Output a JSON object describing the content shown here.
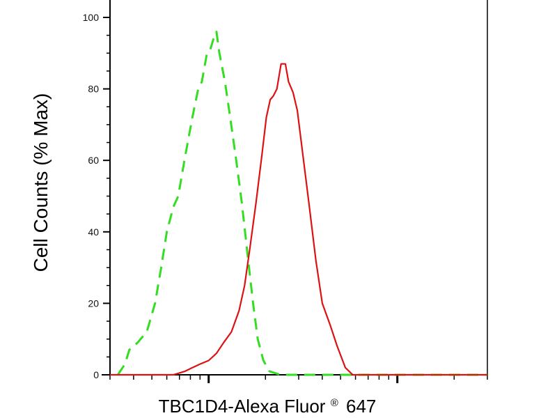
{
  "chart_data": {
    "type": "line",
    "xlabel": "TBC1D4-Alexa Fluor",
    "xlabel_mark": "®",
    "xlabel_suffix": "647",
    "ylabel": "Cell Counts (% Max)",
    "ylim": [
      0,
      100
    ],
    "yticks": [
      0,
      20,
      40,
      60,
      80,
      100
    ],
    "x_scale": "log",
    "xlim": [
      0.3,
      30
    ],
    "grid": false,
    "series": [
      {
        "style": "dashed",
        "color": "#33dd22",
        "points": [
          [
            0.33,
            0
          ],
          [
            0.36,
            3
          ],
          [
            0.38,
            7
          ],
          [
            0.42,
            9
          ],
          [
            0.47,
            12
          ],
          [
            0.52,
            20
          ],
          [
            0.56,
            30
          ],
          [
            0.6,
            40
          ],
          [
            0.65,
            47
          ],
          [
            0.69,
            50
          ],
          [
            0.75,
            61
          ],
          [
            0.82,
            72
          ],
          [
            0.88,
            80
          ],
          [
            0.92,
            82
          ],
          [
            0.98,
            90
          ],
          [
            1.02,
            91
          ],
          [
            1.06,
            94
          ],
          [
            1.1,
            96
          ],
          [
            1.14,
            90
          ],
          [
            1.22,
            82
          ],
          [
            1.3,
            72
          ],
          [
            1.4,
            60
          ],
          [
            1.5,
            48
          ],
          [
            1.62,
            32
          ],
          [
            1.72,
            20
          ],
          [
            1.82,
            10
          ],
          [
            1.95,
            4
          ],
          [
            2.1,
            1
          ],
          [
            2.4,
            0
          ],
          [
            5,
            0
          ],
          [
            10,
            0
          ],
          [
            30,
            0
          ]
        ]
      },
      {
        "style": "solid",
        "color": "#dd1111",
        "points": [
          [
            0.3,
            0
          ],
          [
            0.35,
            0
          ],
          [
            0.4,
            0
          ],
          [
            0.5,
            0
          ],
          [
            0.65,
            0
          ],
          [
            0.75,
            1
          ],
          [
            0.82,
            2
          ],
          [
            0.9,
            3
          ],
          [
            1.0,
            4
          ],
          [
            1.1,
            6
          ],
          [
            1.2,
            9
          ],
          [
            1.32,
            12
          ],
          [
            1.45,
            18
          ],
          [
            1.55,
            25
          ],
          [
            1.65,
            35
          ],
          [
            1.78,
            48
          ],
          [
            1.92,
            62
          ],
          [
            2.02,
            72
          ],
          [
            2.12,
            77
          ],
          [
            2.2,
            78
          ],
          [
            2.3,
            80
          ],
          [
            2.42,
            87
          ],
          [
            2.55,
            87
          ],
          [
            2.65,
            82
          ],
          [
            2.8,
            79
          ],
          [
            2.95,
            74
          ],
          [
            3.15,
            62
          ],
          [
            3.4,
            48
          ],
          [
            3.7,
            32
          ],
          [
            4.0,
            20
          ],
          [
            4.4,
            14
          ],
          [
            4.8,
            8
          ],
          [
            5.3,
            2
          ],
          [
            5.8,
            0
          ],
          [
            8,
            0
          ],
          [
            15,
            0
          ],
          [
            30,
            0
          ]
        ]
      }
    ]
  }
}
